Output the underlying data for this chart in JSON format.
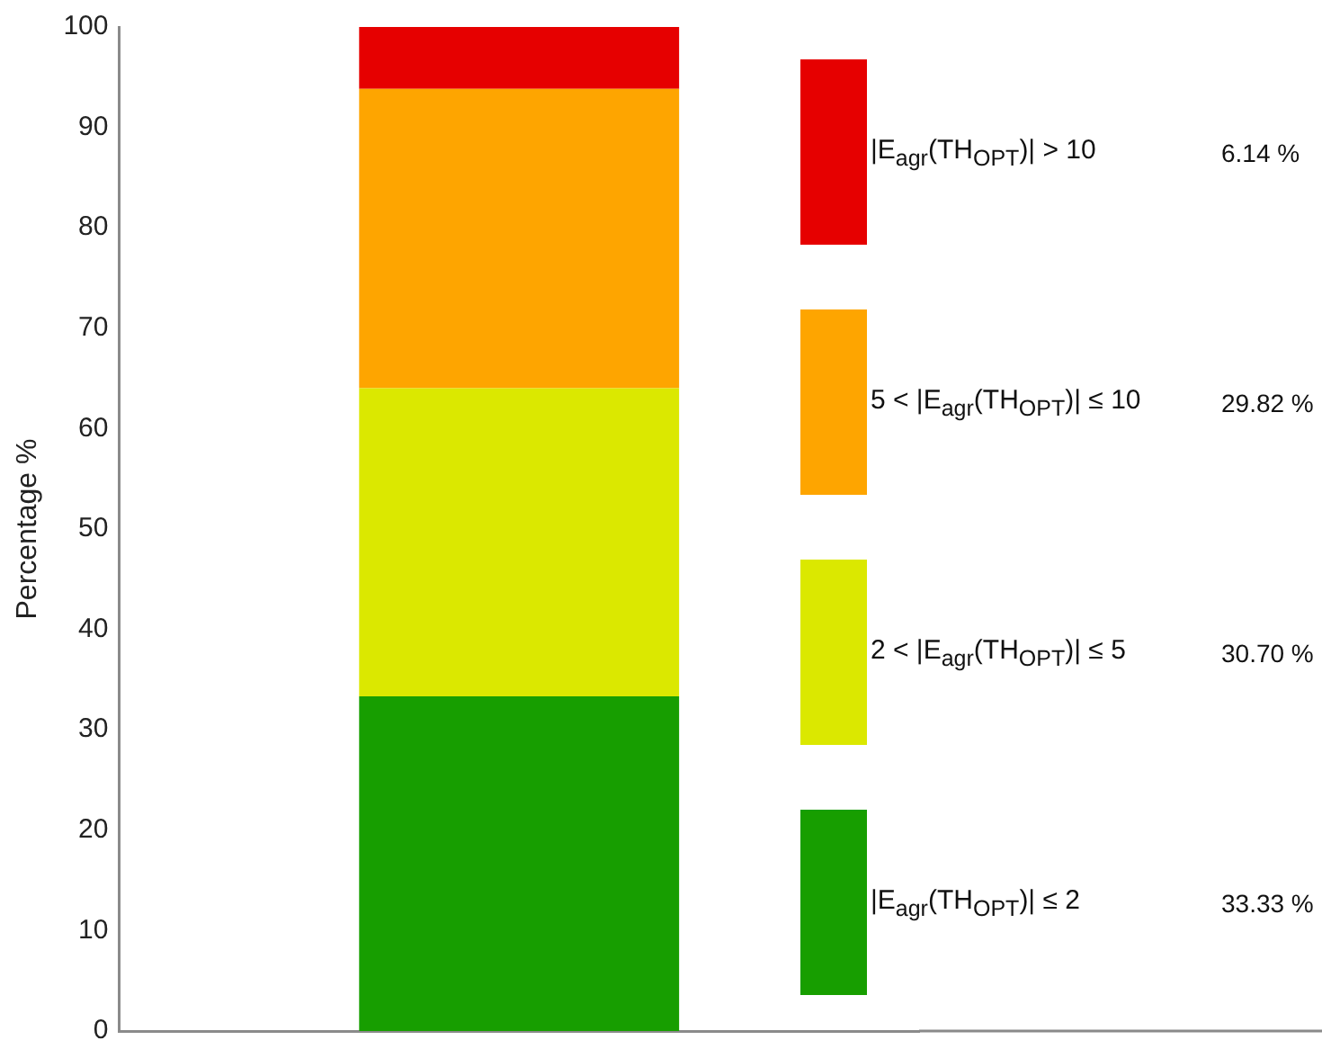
{
  "chart_data": {
    "type": "bar",
    "stacked": true,
    "ylabel": "Percentage %",
    "categories": [
      null
    ],
    "ylim": [
      0,
      100
    ],
    "yticks": [
      0,
      10,
      20,
      30,
      40,
      50,
      60,
      70,
      80,
      90,
      100
    ],
    "grid": false,
    "legend": "right",
    "tick_labels": "y",
    "annotations": [
      "6.14 %",
      "29.82 %",
      "30.70 %",
      "33.33 %"
    ],
    "series": [
      {
        "name": "|E$_{agr}$(TH$_{OPT}$)| ≤ 2",
        "color": "#179e00",
        "values": [
          33.33
        ]
      },
      {
        "name": "2 < |E$_{agr}$(TH$_{OPT}$)| ≤ 5",
        "color": "#dbe800",
        "values": [
          30.7
        ]
      },
      {
        "name": "5 < |E$_{agr}$(TH$_{OPT}$)| ≤ 10",
        "color": "#fea500",
        "values": [
          29.82
        ]
      },
      {
        "name": "|E$_{agr}$(TH$_{OPT}$)| > 10",
        "color": "#e60000",
        "values": [
          6.14
        ]
      }
    ]
  }
}
